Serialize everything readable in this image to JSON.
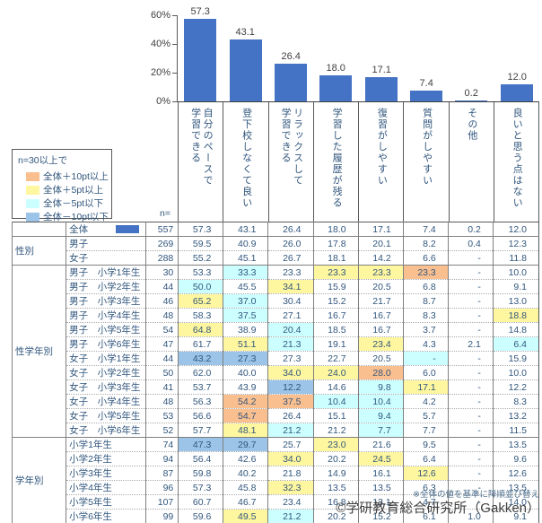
{
  "chart_data": {
    "type": "bar",
    "categories": [
      "自分のペースで\n学習できる",
      "登下校しなくて良い",
      "リラックスして\n学習できる",
      "学習した履歴が残る",
      "復習がしやすい",
      "質問がしやすい",
      "その他",
      "良いと思う点はない"
    ],
    "values": [
      57.3,
      43.1,
      26.4,
      18.0,
      17.1,
      7.4,
      0.2,
      12.0
    ],
    "value_labels": [
      "57.3",
      "43.1",
      "26.4",
      "18.0",
      "17.1",
      "7.4",
      "0.2",
      "12.0"
    ],
    "title": "",
    "xlabel": "",
    "ylabel": "",
    "ylim": [
      0,
      60
    ],
    "yticks": [
      {
        "label": "0%",
        "pct": 0
      },
      {
        "label": "20%",
        "pct": 20
      },
      {
        "label": "40%",
        "pct": 40
      },
      {
        "label": "60%",
        "pct": 60
      }
    ],
    "grid": false,
    "bar_color": "#4472C4"
  },
  "legend": {
    "title": "n=30以上で",
    "items": [
      {
        "label": "全体＋10pt以上",
        "code": "p10"
      },
      {
        "label": "全体＋5pt以上",
        "code": "p5"
      },
      {
        "label": "全体－5pt以下",
        "code": "m5"
      },
      {
        "label": "全体－10pt以下",
        "code": "m10"
      }
    ]
  },
  "highlight_colors": {
    "p10": "#FABF8F",
    "p5": "#FFF79F",
    "m5": "#CCFFFF",
    "m10": "#9CC3E8"
  },
  "table": {
    "n_header": "n=",
    "overall": {
      "label": "全体",
      "n": "557",
      "values": [
        "57.3",
        "43.1",
        "26.4",
        "18.0",
        "17.1",
        "7.4",
        "0.2",
        "12.0"
      ],
      "hl": [
        "",
        "",
        "",
        "",
        "",
        "",
        "",
        ""
      ]
    },
    "groups": [
      {
        "name": "性別",
        "rows": [
          {
            "label": "男子",
            "n": "269",
            "values": [
              "59.5",
              "40.9",
              "26.0",
              "17.8",
              "20.1",
              "8.2",
              "0.4",
              "12.3"
            ],
            "hl": [
              "",
              "",
              "",
              "",
              "",
              "",
              "",
              ""
            ]
          },
          {
            "label": "女子",
            "n": "288",
            "values": [
              "55.2",
              "45.1",
              "26.7",
              "18.1",
              "14.2",
              "6.6",
              "-",
              "11.8"
            ],
            "hl": [
              "",
              "",
              "",
              "",
              "",
              "",
              "",
              ""
            ]
          }
        ]
      },
      {
        "name": "性学年別",
        "rows": [
          {
            "label": "男子　小学1年生",
            "n": "30",
            "values": [
              "53.3",
              "33.3",
              "23.3",
              "23.3",
              "23.3",
              "23.3",
              "-",
              "10.0"
            ],
            "hl": [
              "",
              "m5",
              "",
              "p5",
              "p5",
              "p10",
              "",
              ""
            ]
          },
          {
            "label": "男子　小学2年生",
            "n": "44",
            "values": [
              "50.0",
              "45.5",
              "34.1",
              "15.9",
              "20.5",
              "6.8",
              "-",
              "9.1"
            ],
            "hl": [
              "m5",
              "",
              "p5",
              "",
              "",
              "",
              "",
              ""
            ]
          },
          {
            "label": "男子　小学3年生",
            "n": "46",
            "values": [
              "65.2",
              "37.0",
              "30.4",
              "15.2",
              "21.7",
              "8.7",
              "-",
              "13.0"
            ],
            "hl": [
              "p5",
              "m5",
              "",
              "",
              "",
              "",
              "",
              ""
            ]
          },
          {
            "label": "男子　小学4年生",
            "n": "48",
            "values": [
              "58.3",
              "37.5",
              "27.1",
              "16.7",
              "16.7",
              "8.3",
              "-",
              "18.8"
            ],
            "hl": [
              "",
              "m5",
              "",
              "",
              "",
              "",
              "",
              "p5"
            ]
          },
          {
            "label": "男子　小学5年生",
            "n": "54",
            "values": [
              "64.8",
              "38.9",
              "20.4",
              "18.5",
              "16.7",
              "3.7",
              "-",
              "14.8"
            ],
            "hl": [
              "p5",
              "",
              "m5",
              "",
              "",
              "",
              "",
              ""
            ]
          },
          {
            "label": "男子　小学6年生",
            "n": "47",
            "values": [
              "61.7",
              "51.1",
              "21.3",
              "19.1",
              "23.4",
              "4.3",
              "2.1",
              "6.4"
            ],
            "hl": [
              "",
              "p5",
              "m5",
              "",
              "p5",
              "",
              "",
              "m5"
            ]
          },
          {
            "label": "女子　小学1年生",
            "n": "44",
            "values": [
              "43.2",
              "27.3",
              "27.3",
              "22.7",
              "20.5",
              "-",
              "-",
              "15.9"
            ],
            "hl": [
              "m10",
              "m10",
              "",
              "",
              "",
              "m5",
              "",
              ""
            ]
          },
          {
            "label": "女子　小学2年生",
            "n": "50",
            "values": [
              "62.0",
              "40.0",
              "34.0",
              "24.0",
              "28.0",
              "6.0",
              "-",
              "10.0"
            ],
            "hl": [
              "",
              "",
              "p5",
              "p5",
              "p10",
              "",
              "",
              ""
            ]
          },
          {
            "label": "女子　小学3年生",
            "n": "41",
            "values": [
              "53.7",
              "43.9",
              "12.2",
              "14.6",
              "9.8",
              "17.1",
              "-",
              "12.2"
            ],
            "hl": [
              "",
              "",
              "m10",
              "",
              "m5",
              "p5",
              "",
              ""
            ]
          },
          {
            "label": "女子　小学4年生",
            "n": "48",
            "values": [
              "56.3",
              "54.2",
              "37.5",
              "10.4",
              "10.4",
              "4.2",
              "-",
              "8.3"
            ],
            "hl": [
              "",
              "p10",
              "p10",
              "m5",
              "m5",
              "",
              "",
              ""
            ]
          },
          {
            "label": "女子　小学5年生",
            "n": "53",
            "values": [
              "56.6",
              "54.7",
              "26.4",
              "15.1",
              "9.4",
              "5.7",
              "-",
              "13.2"
            ],
            "hl": [
              "",
              "p10",
              "",
              "",
              "m5",
              "",
              "",
              ""
            ]
          },
          {
            "label": "女子　小学6年生",
            "n": "52",
            "values": [
              "57.7",
              "48.1",
              "21.2",
              "21.2",
              "7.7",
              "7.7",
              "-",
              "11.5"
            ],
            "hl": [
              "",
              "p5",
              "m5",
              "",
              "m5",
              "",
              "",
              ""
            ]
          }
        ]
      },
      {
        "name": "学年別",
        "rows": [
          {
            "label": "小学1年生",
            "n": "74",
            "values": [
              "47.3",
              "29.7",
              "25.7",
              "23.0",
              "21.6",
              "9.5",
              "-",
              "13.5"
            ],
            "hl": [
              "m10",
              "m10",
              "",
              "p5",
              "",
              "",
              "",
              ""
            ]
          },
          {
            "label": "小学2年生",
            "n": "94",
            "values": [
              "56.4",
              "42.6",
              "34.0",
              "20.2",
              "24.5",
              "6.4",
              "-",
              "9.6"
            ],
            "hl": [
              "",
              "",
              "p5",
              "",
              "p5",
              "",
              "",
              ""
            ]
          },
          {
            "label": "小学3年生",
            "n": "87",
            "values": [
              "59.8",
              "40.2",
              "21.8",
              "14.9",
              "16.1",
              "12.6",
              "-",
              "12.6"
            ],
            "hl": [
              "",
              "",
              "",
              "",
              "",
              "p5",
              "",
              ""
            ]
          },
          {
            "label": "小学4年生",
            "n": "96",
            "values": [
              "57.3",
              "45.8",
              "32.3",
              "13.5",
              "13.5",
              "6.3",
              "-",
              "13.5"
            ],
            "hl": [
              "",
              "",
              "p5",
              "",
              "",
              "",
              "",
              ""
            ]
          },
          {
            "label": "小学5年生",
            "n": "107",
            "values": [
              "60.7",
              "46.7",
              "23.4",
              "16.8",
              "13.1",
              "4.7",
              "-",
              "14.0"
            ],
            "hl": [
              "",
              "",
              "",
              "",
              "",
              "",
              "",
              ""
            ]
          },
          {
            "label": "小学6年生",
            "n": "99",
            "values": [
              "59.6",
              "49.5",
              "21.2",
              "20.2",
              "15.2",
              "6.1",
              "1.0",
              "9.1"
            ],
            "hl": [
              "",
              "p5",
              "m5",
              "",
              "",
              "",
              "",
              ""
            ]
          }
        ]
      }
    ]
  },
  "footer": {
    "note": "※全体の値を基準に降順並び替え",
    "copyright": "©学研教育総合研究所（Gakken）"
  }
}
